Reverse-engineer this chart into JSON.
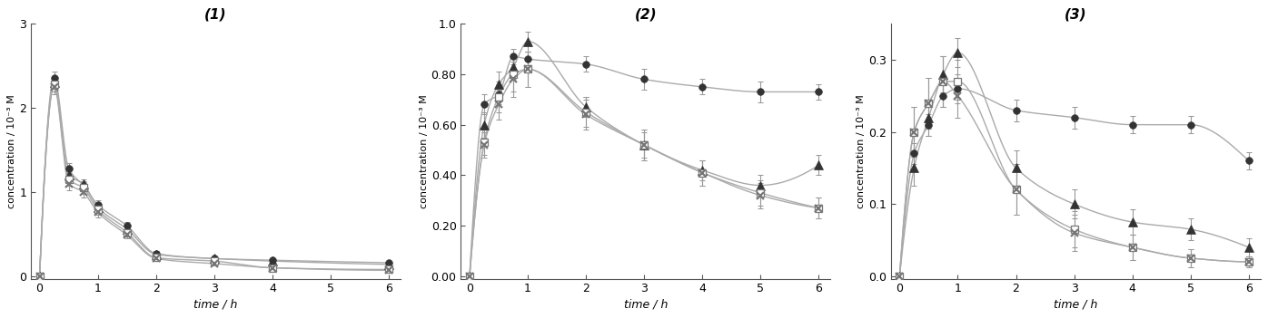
{
  "panels": [
    {
      "title": "(1)",
      "ylabel": "concentration / 10⁻³ M",
      "xlabel": "time / h",
      "ylim": [
        0,
        3.0
      ],
      "yticks": [
        0,
        1,
        2,
        3
      ],
      "yticklabels": [
        "0",
        "1",
        "2",
        "3"
      ],
      "xlim": [
        -0.15,
        6.2
      ],
      "xticks": [
        0,
        1,
        2,
        3,
        4,
        5,
        6
      ],
      "xticklabels": [
        "0",
        "1",
        "2",
        "3",
        "4",
        "5",
        "6"
      ],
      "series": [
        {
          "x": [
            0,
            0.25,
            0.5,
            0.75,
            1.0,
            1.5,
            2.0,
            3.0,
            4.0,
            6.0
          ],
          "y": [
            0.0,
            2.36,
            1.28,
            1.08,
            0.85,
            0.6,
            0.27,
            0.21,
            0.19,
            0.16
          ],
          "yerr": [
            0,
            0.07,
            0.06,
            0.05,
            0.05,
            0.04,
            0.025,
            0.02,
            0.02,
            0.015
          ],
          "marker": "o",
          "filled": true,
          "color": "#333333"
        },
        {
          "x": [
            0,
            0.25,
            0.5,
            0.75,
            1.0,
            1.5,
            2.0,
            3.0,
            4.0,
            6.0
          ],
          "y": [
            0.0,
            2.3,
            1.2,
            1.1,
            0.82,
            0.56,
            0.26,
            0.21,
            0.18,
            0.14
          ],
          "yerr": [
            0,
            0.07,
            0.06,
            0.05,
            0.05,
            0.04,
            0.025,
            0.02,
            0.02,
            0.015
          ],
          "marker": "^",
          "filled": true,
          "color": "#333333"
        },
        {
          "x": [
            0,
            0.25,
            0.5,
            0.75,
            1.0,
            1.5,
            2.0,
            3.0,
            4.0,
            6.0
          ],
          "y": [
            0.0,
            2.28,
            1.15,
            1.05,
            0.79,
            0.52,
            0.22,
            0.18,
            0.1,
            0.08
          ],
          "yerr": [
            0,
            0.09,
            0.08,
            0.07,
            0.06,
            0.04,
            0.03,
            0.02,
            0.02,
            0.01
          ],
          "marker": "s",
          "filled": false,
          "color": "#777777"
        },
        {
          "x": [
            0,
            0.25,
            0.5,
            0.75,
            1.0,
            1.5,
            2.0,
            3.0,
            4.0,
            6.0
          ],
          "y": [
            0.0,
            2.25,
            1.1,
            1.0,
            0.76,
            0.49,
            0.21,
            0.15,
            0.1,
            0.07
          ],
          "yerr": [
            0,
            0.09,
            0.08,
            0.07,
            0.06,
            0.04,
            0.03,
            0.02,
            0.02,
            0.01
          ],
          "marker": "x",
          "filled": false,
          "color": "#777777"
        }
      ]
    },
    {
      "title": "(2)",
      "ylabel": "concentration / 10⁻³ M",
      "xlabel": "time / h",
      "ylim": [
        0,
        1.0
      ],
      "yticks": [
        0.0,
        0.2,
        0.4,
        0.6,
        0.8,
        1.0
      ],
      "yticklabels": [
        "0.00",
        "0.20",
        "0.40",
        "0.60",
        "0.80",
        "1.0"
      ],
      "xlim": [
        -0.15,
        6.2
      ],
      "xticks": [
        0,
        1,
        2,
        3,
        4,
        5,
        6
      ],
      "xticklabels": [
        "0",
        "1",
        "2",
        "3",
        "4",
        "5",
        "6"
      ],
      "series": [
        {
          "x": [
            0,
            0.25,
            0.5,
            0.75,
            1.0,
            2.0,
            3.0,
            4.0,
            5.0,
            6.0
          ],
          "y": [
            0.0,
            0.68,
            0.72,
            0.87,
            0.86,
            0.84,
            0.78,
            0.75,
            0.73,
            0.73
          ],
          "yerr": [
            0,
            0.04,
            0.04,
            0.03,
            0.03,
            0.03,
            0.04,
            0.03,
            0.04,
            0.03
          ],
          "marker": "o",
          "filled": true,
          "color": "#333333"
        },
        {
          "x": [
            0,
            0.25,
            0.5,
            0.75,
            1.0,
            2.0,
            3.0,
            4.0,
            5.0,
            6.0
          ],
          "y": [
            0.0,
            0.6,
            0.76,
            0.83,
            0.93,
            0.67,
            0.52,
            0.42,
            0.36,
            0.44
          ],
          "yerr": [
            0,
            0.05,
            0.05,
            0.05,
            0.04,
            0.04,
            0.05,
            0.04,
            0.04,
            0.04
          ],
          "marker": "^",
          "filled": true,
          "color": "#333333"
        },
        {
          "x": [
            0,
            0.25,
            0.5,
            0.75,
            1.0,
            2.0,
            3.0,
            4.0,
            5.0,
            6.0
          ],
          "y": [
            0.0,
            0.53,
            0.71,
            0.8,
            0.82,
            0.65,
            0.52,
            0.41,
            0.33,
            0.27
          ],
          "yerr": [
            0,
            0.05,
            0.06,
            0.07,
            0.07,
            0.06,
            0.06,
            0.05,
            0.05,
            0.04
          ],
          "marker": "s",
          "filled": false,
          "color": "#777777"
        },
        {
          "x": [
            0,
            0.25,
            0.5,
            0.75,
            1.0,
            2.0,
            3.0,
            4.0,
            5.0,
            6.0
          ],
          "y": [
            0.0,
            0.52,
            0.68,
            0.78,
            0.82,
            0.64,
            0.52,
            0.41,
            0.32,
            0.27
          ],
          "yerr": [
            0,
            0.05,
            0.06,
            0.07,
            0.07,
            0.06,
            0.06,
            0.05,
            0.05,
            0.04
          ],
          "marker": "x",
          "filled": false,
          "color": "#777777"
        }
      ]
    },
    {
      "title": "(3)",
      "ylabel": "concentration / 10⁻³ M",
      "xlabel": "time / h",
      "ylim": [
        0,
        0.35
      ],
      "yticks": [
        0.0,
        0.1,
        0.2,
        0.3
      ],
      "yticklabels": [
        "0.0",
        "0.1",
        "0.2",
        "0.3"
      ],
      "xlim": [
        -0.15,
        6.2
      ],
      "xticks": [
        0,
        1,
        2,
        3,
        4,
        5,
        6
      ],
      "xticklabels": [
        "0",
        "1",
        "2",
        "3",
        "4",
        "5",
        "6"
      ],
      "series": [
        {
          "x": [
            0,
            0.25,
            0.5,
            0.75,
            1.0,
            2.0,
            3.0,
            4.0,
            5.0,
            6.0
          ],
          "y": [
            0.0,
            0.17,
            0.21,
            0.25,
            0.26,
            0.23,
            0.22,
            0.21,
            0.21,
            0.16
          ],
          "yerr": [
            0,
            0.015,
            0.015,
            0.015,
            0.015,
            0.015,
            0.015,
            0.012,
            0.012,
            0.012
          ],
          "marker": "o",
          "filled": true,
          "color": "#333333"
        },
        {
          "x": [
            0,
            0.25,
            0.5,
            0.75,
            1.0,
            2.0,
            3.0,
            4.0,
            5.0,
            6.0
          ],
          "y": [
            0.0,
            0.15,
            0.22,
            0.28,
            0.31,
            0.15,
            0.1,
            0.075,
            0.065,
            0.04
          ],
          "yerr": [
            0,
            0.025,
            0.025,
            0.025,
            0.02,
            0.025,
            0.02,
            0.018,
            0.015,
            0.012
          ],
          "marker": "^",
          "filled": true,
          "color": "#333333"
        },
        {
          "x": [
            0,
            0.25,
            0.5,
            0.75,
            1.0,
            2.0,
            3.0,
            4.0,
            5.0,
            6.0
          ],
          "y": [
            0.0,
            0.2,
            0.24,
            0.27,
            0.27,
            0.12,
            0.065,
            0.04,
            0.025,
            0.02
          ],
          "yerr": [
            0,
            0.035,
            0.035,
            0.035,
            0.03,
            0.035,
            0.025,
            0.018,
            0.012,
            0.008
          ],
          "marker": "s",
          "filled": false,
          "color": "#777777"
        },
        {
          "x": [
            0,
            0.25,
            0.5,
            0.75,
            1.0,
            2.0,
            3.0,
            4.0,
            5.0,
            6.0
          ],
          "y": [
            0.0,
            0.2,
            0.24,
            0.27,
            0.25,
            0.12,
            0.06,
            0.04,
            0.025,
            0.02
          ],
          "yerr": [
            0,
            0.035,
            0.035,
            0.035,
            0.03,
            0.035,
            0.025,
            0.018,
            0.012,
            0.008
          ],
          "marker": "x",
          "filled": false,
          "color": "#777777"
        }
      ]
    }
  ],
  "figure_bg": "#ffffff",
  "line_color": "#aaaaaa",
  "ecolor": "#999999",
  "title_fontsize": 11,
  "label_fontsize": 9,
  "tick_fontsize": 9
}
